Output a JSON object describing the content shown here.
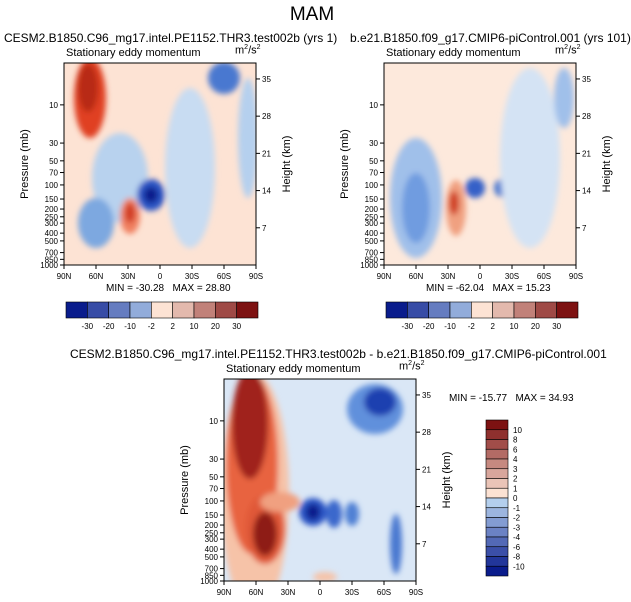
{
  "figure": {
    "title": "MAM",
    "colors": {
      "deep_blue": "#0a1c8c",
      "light_blue": "#b5d0ee",
      "neutral": "#fde3d4",
      "deep_red": "#7d1212"
    }
  },
  "chart_data": [
    {
      "type": "heatmap",
      "title": "CESM2.B1850.C96_mg17.intel.PE1152.THR3.test002b (yrs 1)",
      "subtitle": "Stationary eddy momentum",
      "units_base": "m",
      "units_exp": "2",
      "units_tail": "/s",
      "units_tail_exp": "2",
      "xlabel": "",
      "ylabel": "Pressure (mb)",
      "ylabel_right": "Height (km)",
      "x_ticks": [
        "90N",
        "60N",
        "30N",
        "0",
        "30S",
        "60S",
        "90S"
      ],
      "y_ticks": [
        "10",
        "30",
        "50",
        "70",
        "100",
        "150",
        "200",
        "250",
        "300",
        "400",
        "500",
        "700",
        "850",
        "1000"
      ],
      "y_ticks_right": [
        "35",
        "28",
        "21",
        "14",
        "7"
      ],
      "levels": [
        -30,
        -20,
        -10,
        -2,
        2,
        10,
        20,
        30
      ],
      "level_labels": [
        "-30",
        "-20",
        "-10",
        "-2",
        "2",
        "10",
        "20",
        "30"
      ],
      "min_label": "MIN = -30.28",
      "max_label": "MAX = 28.80",
      "min": -30.28,
      "max": 28.8
    },
    {
      "type": "heatmap",
      "title": "b.e21.B1850.f09_g17.CMIP6-piControl.001 (yrs 101)",
      "subtitle": "Stationary eddy momentum",
      "units_base": "m",
      "units_exp": "2",
      "units_tail": "/s",
      "units_tail_exp": "2",
      "xlabel": "",
      "ylabel": "Pressure (mb)",
      "ylabel_right": "Height (km)",
      "x_ticks": [
        "90N",
        "60N",
        "30N",
        "0",
        "30S",
        "60S",
        "90S"
      ],
      "y_ticks": [
        "10",
        "30",
        "50",
        "70",
        "100",
        "150",
        "200",
        "250",
        "300",
        "400",
        "500",
        "700",
        "850",
        "1000"
      ],
      "y_ticks_right": [
        "35",
        "28",
        "21",
        "14",
        "7"
      ],
      "levels": [
        -30,
        -20,
        -10,
        -2,
        2,
        10,
        20,
        30
      ],
      "level_labels": [
        "-30",
        "-20",
        "-10",
        "-2",
        "2",
        "10",
        "20",
        "30"
      ],
      "min_label": "MIN = -62.04",
      "max_label": "MAX = 15.23",
      "min": -62.04,
      "max": 15.23
    },
    {
      "type": "heatmap",
      "title": "CESM2.B1850.C96_mg17.intel.PE1152.THR3.test002b - b.e21.B1850.f09_g17.CMIP6-piControl.001",
      "subtitle": "Stationary eddy momentum",
      "units_base": "m",
      "units_exp": "2",
      "units_tail": "/s",
      "units_tail_exp": "2",
      "xlabel": "",
      "ylabel": "Pressure (mb)",
      "ylabel_right": "Height (km)",
      "x_ticks": [
        "90N",
        "60N",
        "30N",
        "0",
        "30S",
        "60S",
        "90S"
      ],
      "y_ticks": [
        "10",
        "30",
        "50",
        "70",
        "100",
        "150",
        "200",
        "250",
        "300",
        "400",
        "500",
        "700",
        "850",
        "1000"
      ],
      "y_ticks_right": [
        "35",
        "28",
        "21",
        "14",
        "7"
      ],
      "levels": [
        -10,
        -8,
        -6,
        -4,
        -3,
        -2,
        -1,
        0,
        1,
        2,
        3,
        4,
        6,
        8,
        10
      ],
      "level_labels": [
        "-10",
        "-8",
        "-6",
        "-4",
        "-3",
        "-2",
        "-1",
        "0",
        "1",
        "2",
        "3",
        "4",
        "6",
        "8",
        "10"
      ],
      "min_label": "MIN = -15.77",
      "max_label": "MAX = 34.93",
      "min": -15.77,
      "max": 34.93
    }
  ]
}
